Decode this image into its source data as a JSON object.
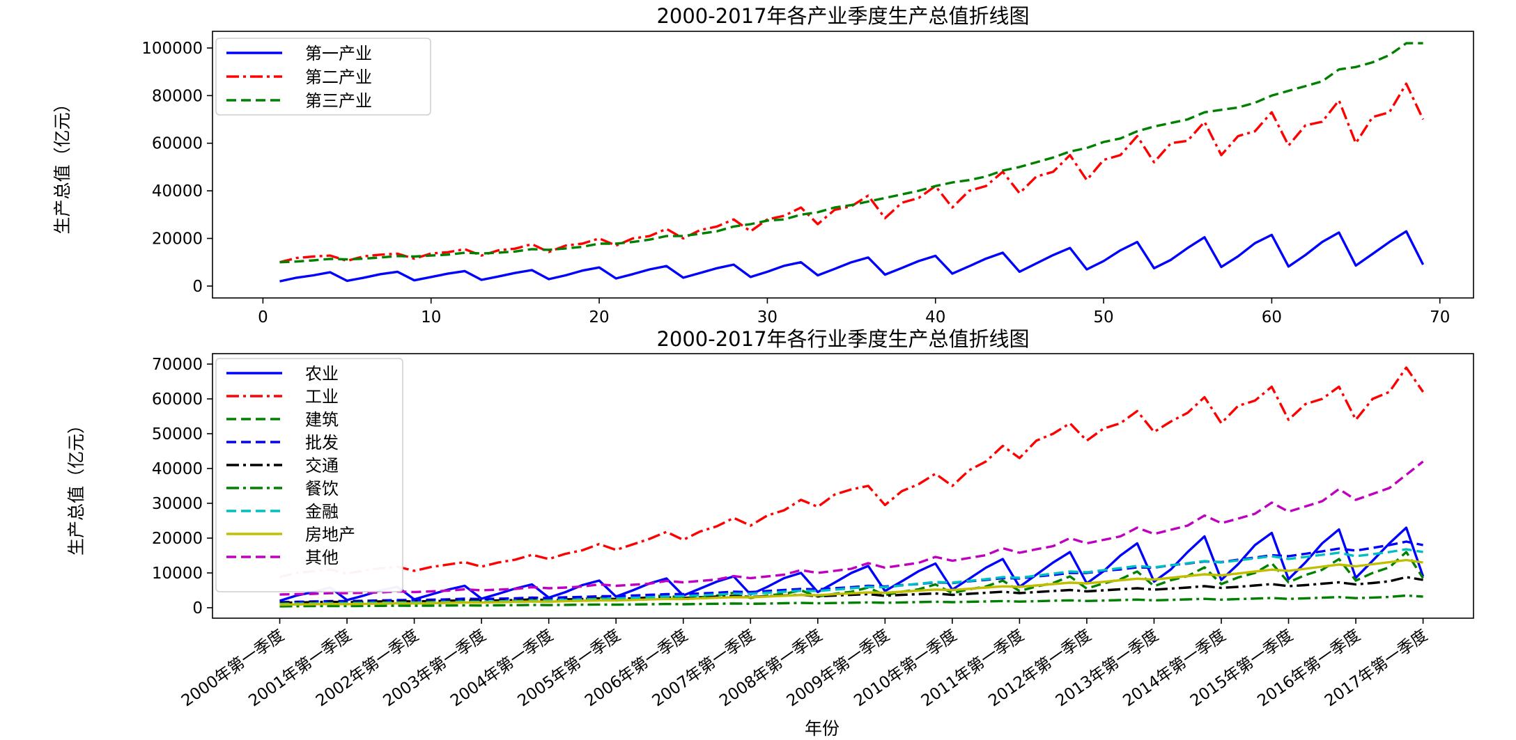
{
  "chart_data": [
    {
      "type": "line",
      "title": "2000-2017年各产业季度生产总值折线图",
      "xlabel": "",
      "ylabel": "生产总值（亿元）",
      "xlim": [
        -3,
        72
      ],
      "ylim": [
        -5000,
        107000
      ],
      "xticks": [
        0,
        10,
        20,
        30,
        40,
        50,
        60,
        70
      ],
      "yticks": [
        0,
        20000,
        40000,
        60000,
        80000,
        100000
      ],
      "grid": false,
      "legend_position": "top-left",
      "x": [
        1,
        2,
        3,
        4,
        5,
        6,
        7,
        8,
        9,
        10,
        11,
        12,
        13,
        14,
        15,
        16,
        17,
        18,
        19,
        20,
        21,
        22,
        23,
        24,
        25,
        26,
        27,
        28,
        29,
        30,
        31,
        32,
        33,
        34,
        35,
        36,
        37,
        38,
        39,
        40,
        41,
        42,
        43,
        44,
        45,
        46,
        47,
        48,
        49,
        50,
        51,
        52,
        53,
        54,
        55,
        56,
        57,
        58,
        59,
        60,
        61,
        62,
        63,
        64,
        65,
        66,
        67,
        68,
        69
      ],
      "series": [
        {
          "name": "第一产业",
          "color": "#0000ff",
          "dash": "solid",
          "values": [
            2000,
            3500,
            4500,
            5800,
            2200,
            3500,
            5000,
            6000,
            2400,
            3800,
            5200,
            6300,
            2600,
            4000,
            5500,
            6700,
            2900,
            4500,
            6500,
            7800,
            3200,
            5000,
            7000,
            8400,
            3500,
            5500,
            7500,
            9000,
            3800,
            6000,
            8500,
            10000,
            4500,
            7200,
            10000,
            12000,
            4800,
            7600,
            10500,
            12700,
            5200,
            8300,
            11500,
            14000,
            6000,
            9500,
            13000,
            16000,
            7000,
            10500,
            15000,
            18500,
            7500,
            11000,
            16000,
            20500,
            8000,
            12500,
            18000,
            21500,
            8200,
            13000,
            18500,
            22500,
            8600,
            13500,
            18500,
            23000,
            9000
          ]
        },
        {
          "name": "第二产业",
          "color": "#ff0000",
          "dash": "dashdot",
          "values": [
            10000,
            11800,
            12400,
            12800,
            10600,
            12500,
            13200,
            13600,
            11500,
            13700,
            14200,
            15500,
            12800,
            15000,
            15700,
            17600,
            14300,
            17000,
            17800,
            20000,
            17000,
            20000,
            21000,
            24000,
            20000,
            23500,
            25000,
            28000,
            23000,
            28000,
            29500,
            33000,
            26000,
            32000,
            33500,
            38000,
            28500,
            35000,
            37000,
            42000,
            33000,
            40000,
            42000,
            48000,
            39000,
            46000,
            48000,
            55000,
            44500,
            53000,
            55000,
            63000,
            52000,
            60000,
            61000,
            69000,
            55000,
            63000,
            65000,
            73000,
            59000,
            67500,
            69000,
            78000,
            60000,
            71000,
            73000,
            85000,
            70000
          ]
        },
        {
          "name": "第三产业",
          "color": "#008000",
          "dash": "dashed",
          "values": [
            10000,
            10300,
            10800,
            11400,
            11200,
            11500,
            12000,
            12600,
            12400,
            12800,
            13200,
            14000,
            13700,
            14000,
            14500,
            15500,
            15200,
            15800,
            16500,
            17800,
            17800,
            18500,
            19500,
            21000,
            21000,
            22000,
            23000,
            25000,
            26000,
            27500,
            28000,
            30000,
            31000,
            33000,
            34000,
            35500,
            37000,
            38500,
            40000,
            42000,
            43500,
            44500,
            46000,
            48500,
            50000,
            52000,
            54000,
            56500,
            58000,
            60500,
            62000,
            65000,
            67000,
            68500,
            70000,
            73000,
            74000,
            75000,
            77000,
            80000,
            82000,
            84000,
            86000,
            91000,
            92000,
            94000,
            97000,
            102000,
            102000
          ]
        }
      ]
    },
    {
      "type": "line",
      "title": "2000-2017年各行业季度生产总值折线图",
      "xlabel": "年份",
      "ylabel": "生产总值（亿元）",
      "ylim": [
        -3000,
        73000
      ],
      "yticks": [
        0,
        10000,
        20000,
        30000,
        40000,
        50000,
        60000,
        70000
      ],
      "grid": false,
      "legend_position": "top-left",
      "categories": [
        "2000年第一季度",
        "2001年第一季度",
        "2002年第一季度",
        "2003年第一季度",
        "2004年第一季度",
        "2005年第一季度",
        "2006年第一季度",
        "2007年第一季度",
        "2008年第一季度",
        "2009年第一季度",
        "2010年第一季度",
        "2011年第一季度",
        "2012年第一季度",
        "2013年第一季度",
        "2014年第一季度",
        "2015年第一季度",
        "2016年第一季度",
        "2017年第一季度"
      ],
      "x": [
        1,
        2,
        3,
        4,
        5,
        6,
        7,
        8,
        9,
        10,
        11,
        12,
        13,
        14,
        15,
        16,
        17,
        18,
        19,
        20,
        21,
        22,
        23,
        24,
        25,
        26,
        27,
        28,
        29,
        30,
        31,
        32,
        33,
        34,
        35,
        36,
        37,
        38,
        39,
        40,
        41,
        42,
        43,
        44,
        45,
        46,
        47,
        48,
        49,
        50,
        51,
        52,
        53,
        54,
        55,
        56,
        57,
        58,
        59,
        60,
        61,
        62,
        63,
        64,
        65,
        66,
        67,
        68,
        69
      ],
      "series": [
        {
          "name": "农业",
          "color": "#0000ff",
          "dash": "solid",
          "values": [
            2000,
            3500,
            4500,
            5800,
            2200,
            3500,
            5000,
            6000,
            2400,
            3800,
            5200,
            6300,
            2600,
            4000,
            5500,
            6700,
            2900,
            4500,
            6500,
            7800,
            3200,
            5000,
            7000,
            8400,
            3500,
            5500,
            7500,
            9000,
            3800,
            6000,
            8500,
            10000,
            4500,
            7200,
            10000,
            12000,
            4800,
            7600,
            10500,
            12700,
            5200,
            8300,
            11500,
            14000,
            6000,
            9500,
            13000,
            16000,
            7000,
            10500,
            15000,
            18500,
            7500,
            11000,
            16000,
            20500,
            8000,
            12500,
            18000,
            21500,
            8200,
            13000,
            18500,
            22500,
            8600,
            13500,
            18500,
            23000,
            9000
          ]
        },
        {
          "name": "工业",
          "color": "#ff0000",
          "dash": "dashdot",
          "values": [
            8800,
            10000,
            10500,
            11000,
            9800,
            10700,
            11300,
            11800,
            10600,
            11700,
            12400,
            13100,
            11800,
            13000,
            13800,
            15200,
            14000,
            15500,
            16500,
            18300,
            16600,
            18200,
            19800,
            21800,
            19500,
            21900,
            23400,
            25800,
            23600,
            26500,
            28000,
            31000,
            29000,
            32500,
            34000,
            35000,
            29500,
            33500,
            35500,
            38500,
            35000,
            39500,
            42000,
            46500,
            43000,
            48000,
            50000,
            53000,
            48000,
            51500,
            53000,
            56500,
            50500,
            53500,
            56000,
            60500,
            53000,
            58000,
            59500,
            63500,
            54000,
            58500,
            60000,
            63500,
            54000,
            60000,
            62000,
            69000,
            62000
          ]
        },
        {
          "name": "建筑",
          "color": "#008000",
          "dash": "dashed",
          "values": [
            1000,
            1200,
            1400,
            1700,
            1200,
            1400,
            1600,
            1900,
            1300,
            1600,
            1800,
            2200,
            1500,
            1800,
            2100,
            2600,
            1800,
            2200,
            2500,
            3100,
            2100,
            2600,
            3000,
            3700,
            2500,
            3000,
            3500,
            4300,
            2800,
            3500,
            4000,
            5000,
            3200,
            4000,
            4600,
            5800,
            3600,
            4600,
            5300,
            6700,
            4200,
            5300,
            6100,
            7800,
            4800,
            6100,
            7100,
            9000,
            5500,
            7000,
            8200,
            10400,
            6200,
            7900,
            9100,
            11600,
            6800,
            8700,
            10000,
            12800,
            7300,
            9400,
            10900,
            14000,
            7800,
            10000,
            11600,
            16000,
            8500
          ]
        },
        {
          "name": "批发",
          "color": "#0000ff",
          "dash": "dashed",
          "values": [
            1600,
            1700,
            1800,
            1900,
            1900,
            2000,
            2100,
            2200,
            2200,
            2300,
            2400,
            2600,
            2500,
            2600,
            2700,
            2900,
            2800,
            3000,
            3100,
            3300,
            3300,
            3500,
            3700,
            3900,
            3900,
            4100,
            4300,
            4600,
            4500,
            4800,
            5100,
            5400,
            5300,
            5600,
            5900,
            6300,
            6100,
            6500,
            6800,
            7300,
            7100,
            7600,
            8000,
            8500,
            8400,
            9000,
            9400,
            10000,
            10000,
            10600,
            11000,
            11600,
            11500,
            12200,
            12700,
            13300,
            13100,
            13800,
            14400,
            15100,
            14800,
            15500,
            16200,
            17000,
            16400,
            17200,
            18000,
            19000,
            18000
          ]
        },
        {
          "name": "交通",
          "color": "#000000",
          "dash": "dashdot",
          "values": [
            1400,
            1500,
            1600,
            1700,
            1600,
            1700,
            1800,
            1900,
            1800,
            1900,
            2000,
            2100,
            2000,
            2100,
            2200,
            2400,
            2200,
            2400,
            2500,
            2700,
            2500,
            2700,
            2900,
            3000,
            2800,
            3000,
            3200,
            3400,
            3100,
            3300,
            3500,
            3700,
            3300,
            3500,
            3700,
            3900,
            3400,
            3700,
            3900,
            4100,
            3700,
            4000,
            4300,
            4600,
            4200,
            4500,
            4800,
            5100,
            4700,
            5000,
            5300,
            5600,
            5200,
            5500,
            5800,
            6200,
            5700,
            6000,
            6400,
            6800,
            6200,
            6500,
            6900,
            7300,
            6700,
            7100,
            7600,
            8800,
            8000
          ]
        },
        {
          "name": "餐饮",
          "color": "#008000",
          "dash": "dashdot",
          "values": [
            400,
            450,
            480,
            500,
            480,
            520,
            550,
            580,
            560,
            600,
            640,
            680,
            650,
            700,
            740,
            790,
            760,
            820,
            870,
            930,
            880,
            940,
            1000,
            1070,
            1000,
            1070,
            1140,
            1220,
            1140,
            1210,
            1290,
            1380,
            1280,
            1360,
            1450,
            1550,
            1430,
            1520,
            1620,
            1730,
            1590,
            1690,
            1800,
            1920,
            1760,
            1870,
            1990,
            2130,
            1940,
            2060,
            2190,
            2340,
            2120,
            2260,
            2400,
            2560,
            2330,
            2480,
            2640,
            2810,
            2540,
            2700,
            2870,
            3060,
            2760,
            2930,
            3110,
            3510,
            3200
          ]
        },
        {
          "name": "金融",
          "color": "#00bfbf",
          "dash": "dashed",
          "values": [
            1100,
            1200,
            1250,
            1300,
            1300,
            1380,
            1450,
            1500,
            1500,
            1600,
            1680,
            1750,
            1750,
            1850,
            1950,
            2050,
            2100,
            2250,
            2400,
            2550,
            2600,
            2800,
            3000,
            3200,
            3300,
            3550,
            3800,
            4050,
            4000,
            4300,
            4600,
            4900,
            4800,
            5200,
            5600,
            6000,
            5900,
            6400,
            6900,
            7400,
            7200,
            7700,
            8200,
            8800,
            8600,
            9200,
            9800,
            10400,
            10200,
            10800,
            11400,
            12000,
            11600,
            12200,
            12800,
            13400,
            13000,
            13600,
            14200,
            14800,
            14000,
            14600,
            15200,
            15800,
            14800,
            15400,
            16000,
            16800,
            16000
          ]
        },
        {
          "name": "房地产",
          "color": "#bfbf00",
          "dash": "solid",
          "values": [
            900,
            960,
            1020,
            1080,
            1050,
            1120,
            1190,
            1260,
            1250,
            1330,
            1410,
            1490,
            1480,
            1580,
            1680,
            1780,
            1750,
            1870,
            1990,
            2110,
            2100,
            2240,
            2380,
            2520,
            2500,
            2680,
            2860,
            3040,
            3000,
            3220,
            3440,
            3660,
            3600,
            3870,
            4140,
            4410,
            4300,
            4610,
            4920,
            5230,
            5100,
            5450,
            5800,
            6150,
            6000,
            6400,
            6800,
            7200,
            7000,
            7450,
            7900,
            8350,
            8100,
            8600,
            9100,
            9600,
            9300,
            9850,
            10400,
            10950,
            10600,
            11200,
            11800,
            12400,
            11900,
            12500,
            13100,
            13700,
            13000
          ]
        },
        {
          "name": "其他",
          "color": "#bf00bf",
          "dash": "dashed",
          "values": [
            3800,
            3900,
            4000,
            4200,
            4200,
            4300,
            4400,
            4700,
            4500,
            4700,
            4900,
            5300,
            5000,
            5200,
            5400,
            5900,
            5600,
            5800,
            6100,
            6700,
            6300,
            6600,
            6900,
            7700,
            7300,
            7700,
            8100,
            9100,
            8500,
            9000,
            9500,
            10800,
            10000,
            10600,
            11200,
            12800,
            11500,
            12200,
            12900,
            14600,
            13500,
            14300,
            15100,
            17100,
            15800,
            16800,
            17700,
            20000,
            18500,
            19500,
            20500,
            23000,
            21200,
            22400,
            23600,
            26500,
            24300,
            25600,
            27000,
            30200,
            27600,
            29100,
            30600,
            34100,
            31000,
            32700,
            34400,
            38200,
            42000
          ]
        }
      ]
    }
  ]
}
